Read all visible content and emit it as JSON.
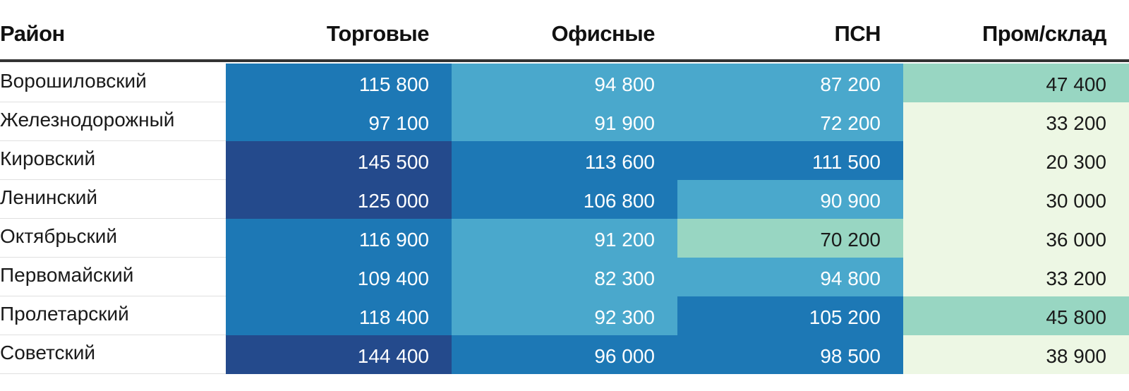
{
  "chart_data": {
    "type": "table",
    "columns": [
      "Район",
      "Торговые",
      "Офисные",
      "ПСН",
      "Пром/склад"
    ],
    "rows": [
      {
        "district": "Ворошиловский",
        "values": [
          "115 800",
          "94 800",
          "87 200",
          "47 400"
        ],
        "colors": [
          "#1d78b5",
          "#4aa8cc",
          "#4aa8cc",
          "#98d6c2"
        ]
      },
      {
        "district": "Железнодорожный",
        "values": [
          "97 100",
          "91 900",
          "72 200",
          "33 200"
        ],
        "colors": [
          "#1d78b5",
          "#4aa8cc",
          "#4aa8cc",
          "#edf7e4"
        ]
      },
      {
        "district": "Кировский",
        "values": [
          "145 500",
          "113 600",
          "111 500",
          "20 300"
        ],
        "colors": [
          "#244a8c",
          "#1d78b5",
          "#1d78b5",
          "#edf7e4"
        ]
      },
      {
        "district": "Ленинский",
        "values": [
          "125 000",
          "106 800",
          "90 900",
          "30 000"
        ],
        "colors": [
          "#244a8c",
          "#1d78b5",
          "#4aa8cc",
          "#edf7e4"
        ]
      },
      {
        "district": "Октябрьский",
        "values": [
          "116 900",
          "91 200",
          "70 200",
          "36 000"
        ],
        "colors": [
          "#1d78b5",
          "#4aa8cc",
          "#98d6c2",
          "#edf7e4"
        ]
      },
      {
        "district": "Первомайский",
        "values": [
          "109 400",
          "82 300",
          "94 800",
          "33 200"
        ],
        "colors": [
          "#1d78b5",
          "#4aa8cc",
          "#4aa8cc",
          "#edf7e4"
        ]
      },
      {
        "district": "Пролетарский",
        "values": [
          "118 400",
          "92 300",
          "105 200",
          "45 800"
        ],
        "colors": [
          "#1d78b5",
          "#4aa8cc",
          "#1d78b5",
          "#98d6c2"
        ]
      },
      {
        "district": "Советский",
        "values": [
          "144 400",
          "96 000",
          "98 500",
          "38 900"
        ],
        "colors": [
          "#244a8c",
          "#1d78b5",
          "#1d78b5",
          "#edf7e4"
        ]
      }
    ]
  }
}
